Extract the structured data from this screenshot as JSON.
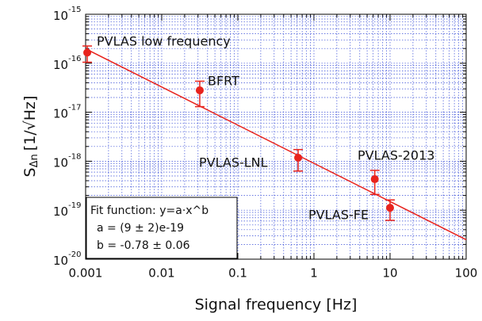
{
  "chart_data": {
    "type": "scatter",
    "x_label": "Signal frequency [Hz]",
    "y_label": {
      "main": "S",
      "sub": "Δn",
      "unit": "[1/√Hz]"
    },
    "log_x": true,
    "log_y": true,
    "grid": true,
    "xlim": [
      0.001,
      100
    ],
    "ylim": [
      1e-20,
      1e-15
    ],
    "xticks": [
      0.001,
      0.01,
      0.1,
      1,
      10,
      100
    ],
    "yticks": [
      {
        "value": 1e-20,
        "label": "10",
        "exponent": "-20"
      },
      {
        "value": 1e-19,
        "label": "10",
        "exponent": "-19"
      },
      {
        "value": 1e-18,
        "label": "10",
        "exponent": "-18"
      },
      {
        "value": 1e-17,
        "label": "10",
        "exponent": "-17"
      },
      {
        "value": 1e-16,
        "label": "10",
        "exponent": "-16"
      },
      {
        "value": 1e-15,
        "label": "10",
        "exponent": "-15"
      }
    ],
    "series": [
      {
        "color": "#e8231d",
        "labels": [
          "PVLAS low frequency",
          "BFRT",
          "PVLAS-LNL",
          "PVLAS-2013",
          "PVLAS-FE"
        ],
        "x": [
          0.00105,
          0.0316,
          0.62,
          6.3,
          10
        ],
        "values": [
          1.65e-16,
          2.8e-17,
          1.18e-18,
          4.3e-19,
          1.12e-19
        ],
        "errors": [
          6e-17,
          1.5e-17,
          5.5e-19,
          2.2e-19,
          5e-20
        ]
      },
      {
        "type": "line",
        "color": "#e8231d",
        "x": [
          0.001,
          100
        ],
        "values": [
          1.97e-16,
          2.5e-20
        ]
      }
    ],
    "fit_box": [
      "Fit function: y=a·x^b",
      "a =  (9 ± 2)e-19",
      "b = -0.78 ± 0.06"
    ]
  }
}
